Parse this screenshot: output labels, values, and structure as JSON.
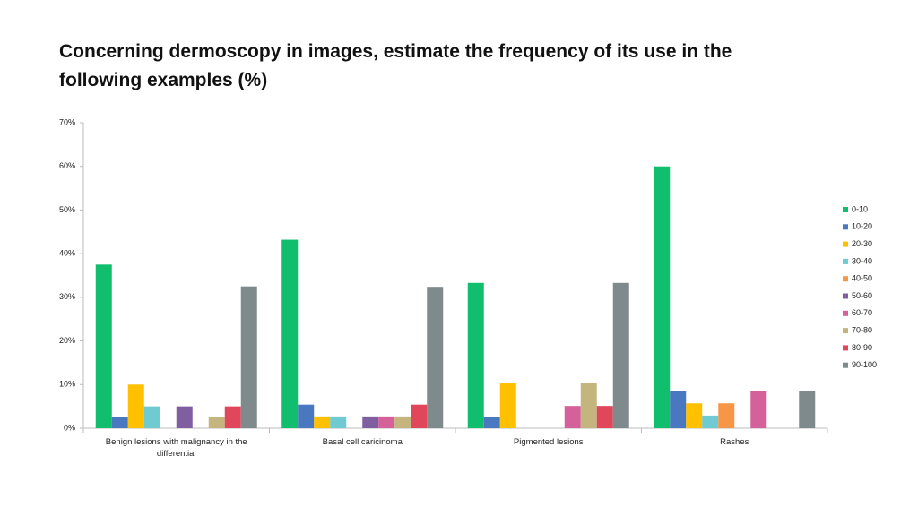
{
  "chart_data": {
    "type": "bar",
    "title": "Concerning dermoscopy in images, estimate the frequency of its use in the following examples (%)",
    "categories": [
      "Benign lesions with malignancy in the differential",
      "Basal cell caricinoma",
      "Pigmented lesions",
      "Rashes"
    ],
    "series": [
      {
        "name": "0-10",
        "color": "#10be6e",
        "values": [
          37.5,
          43.2,
          33.3,
          60
        ]
      },
      {
        "name": "10-20",
        "color": "#4a78c0",
        "values": [
          2.5,
          5.4,
          2.6,
          8.6
        ]
      },
      {
        "name": "20-30",
        "color": "#ffc000",
        "values": [
          10,
          2.7,
          10.3,
          5.7
        ]
      },
      {
        "name": "30-40",
        "color": "#6fcbd1",
        "values": [
          5,
          2.7,
          0,
          2.9
        ]
      },
      {
        "name": "40-50",
        "color": "#f79646",
        "values": [
          0,
          0,
          0,
          5.7
        ]
      },
      {
        "name": "50-60",
        "color": "#7f5f9f",
        "values": [
          5,
          2.7,
          0,
          0
        ]
      },
      {
        "name": "60-70",
        "color": "#d5619a",
        "values": [
          0,
          2.7,
          5.1,
          8.6
        ]
      },
      {
        "name": "70-80",
        "color": "#c4b57f",
        "values": [
          2.5,
          2.7,
          10.3,
          0
        ]
      },
      {
        "name": "80-90",
        "color": "#e0475a",
        "values": [
          5,
          5.4,
          5.1,
          0
        ]
      },
      {
        "name": "90-100",
        "color": "#7f8a8c",
        "values": [
          32.5,
          32.4,
          33.3,
          8.6
        ]
      }
    ],
    "ylim": [
      0,
      70
    ],
    "yticks": [
      {
        "value": 0,
        "label": "0%"
      },
      {
        "value": 10,
        "label": "10%"
      },
      {
        "value": 20,
        "label": "20%"
      },
      {
        "value": 30,
        "label": "30%"
      },
      {
        "value": 40,
        "label": "40%"
      },
      {
        "value": 50,
        "label": "50%"
      },
      {
        "value": 60,
        "label": "60%"
      },
      {
        "value": 70,
        "label": "70%"
      }
    ],
    "grid": false,
    "legend": "right"
  }
}
